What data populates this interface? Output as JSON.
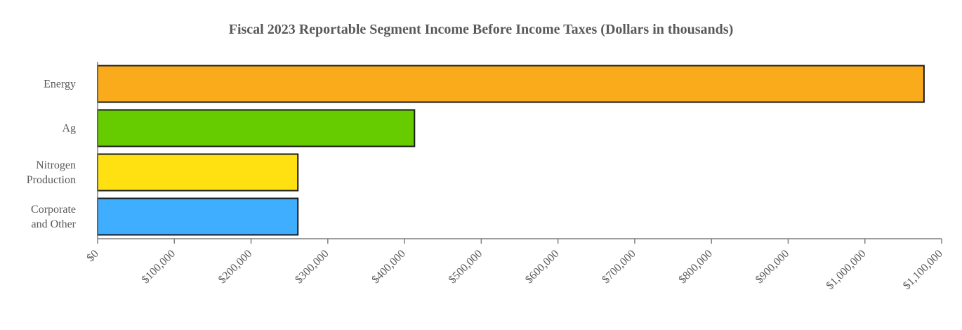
{
  "chart_data": {
    "type": "bar",
    "orientation": "horizontal",
    "title": "Fiscal 2023 Reportable Segment Income Before Income Taxes (Dollars in thousands)",
    "xlabel": "",
    "ylabel": "",
    "categories": [
      [
        "Energy"
      ],
      [
        "Ag"
      ],
      [
        "Nitrogen",
        "Production"
      ],
      [
        "Corporate",
        "and Other"
      ]
    ],
    "values": [
      1077000,
      413000,
      261000,
      261000
    ],
    "colors": [
      "#F9AB1C",
      "#66CC00",
      "#FFE010",
      "#3FAEFF"
    ],
    "xlim": [
      0,
      1100000
    ],
    "ticks": [
      {
        "value": 0,
        "label": "$0"
      },
      {
        "value": 100000,
        "label": "$100,000"
      },
      {
        "value": 200000,
        "label": "$200,000"
      },
      {
        "value": 300000,
        "label": "$300,000"
      },
      {
        "value": 400000,
        "label": "$400,000"
      },
      {
        "value": 500000,
        "label": "$500,000"
      },
      {
        "value": 600000,
        "label": "$600,000"
      },
      {
        "value": 700000,
        "label": "$700,000"
      },
      {
        "value": 800000,
        "label": "$800,000"
      },
      {
        "value": 900000,
        "label": "$900,000"
      },
      {
        "value": 1000000,
        "label": "$1,000,000"
      },
      {
        "value": 1100000,
        "label": "$1,100,000"
      }
    ],
    "grid": false,
    "legend": "none"
  }
}
